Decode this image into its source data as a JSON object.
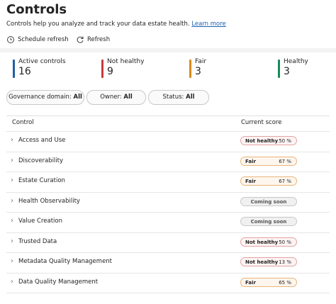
{
  "header": {
    "title": "Controls",
    "description": "Controls help you analyze and track your data estate health.",
    "link": "Learn more"
  },
  "toolbar": [
    "Schedule refresh",
    "Refresh"
  ],
  "summary": [
    {
      "label": "Active controls",
      "value": 16,
      "color": "#1f5fa8"
    },
    {
      "label": "Not healthy",
      "value": 9,
      "color": "#c43b3b"
    },
    {
      "label": "Fair",
      "value": 3,
      "color": "#d98a1c"
    },
    {
      "label": "Healthy",
      "value": 3,
      "color": "#1a8a5a"
    }
  ],
  "filters": [
    {
      "label": "Governance domain:",
      "value": "All"
    },
    {
      "label": "Owner:",
      "value": "All"
    },
    {
      "label": "Status:",
      "value": "All"
    }
  ],
  "table": {
    "columns": [
      "Control",
      "Current score"
    ],
    "rows": [
      {
        "name": "Access and Use",
        "status": "Not healthy",
        "score": "50 %",
        "color": "#e3a3a3",
        "fill": "#fdf3f3"
      },
      {
        "name": "Discoverability",
        "status": "Fair",
        "score": "67 %",
        "color": "#eab47a",
        "fill": "#fdf6ee"
      },
      {
        "name": "Estate Curation",
        "status": "Fair",
        "score": "67 %",
        "color": "#eab47a",
        "fill": "#fdf6ee"
      },
      {
        "name": "Health Observability",
        "status": "Coming soon",
        "color": "#c8c8c8",
        "fill": "#f0f0f0"
      },
      {
        "name": "Value Creation",
        "status": "Coming soon",
        "color": "#c8c8c8",
        "fill": "#f0f0f0"
      },
      {
        "name": "Trusted Data",
        "status": "Not healthy",
        "score": "50 %",
        "color": "#e3a3a3",
        "fill": "#fdf3f3"
      },
      {
        "name": "Metadata Quality Management",
        "status": "Not healthy",
        "score": "13 %",
        "color": "#e3a3a3",
        "fill": "#fdf3f3"
      },
      {
        "name": "Data Quality Management",
        "status": "Fair",
        "score": "65 %",
        "color": "#eab47a",
        "fill": "#fdf6ee"
      }
    ]
  }
}
